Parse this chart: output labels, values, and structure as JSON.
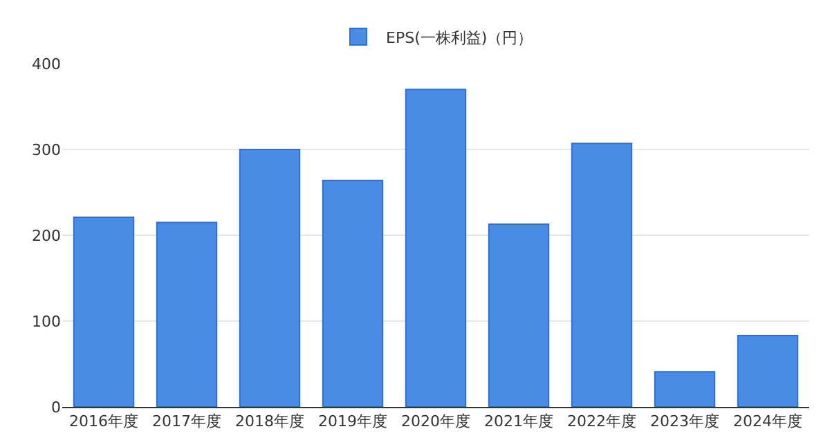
{
  "chart_data": {
    "type": "bar",
    "categories": [
      "2016年度",
      "2017年度",
      "2018年度",
      "2019年度",
      "2020年度",
      "2021年度",
      "2022年度",
      "2023年度",
      "2024年度"
    ],
    "series": [
      {
        "name": "EPS(一株利益)（円）",
        "color": "#4a8be6",
        "values": [
          221,
          215,
          300,
          264,
          370,
          213,
          307,
          41,
          83
        ]
      }
    ],
    "ylim": [
      0,
      400
    ],
    "yticks": [
      0,
      100,
      200,
      300,
      400
    ],
    "grid": "y",
    "legend": "top"
  }
}
